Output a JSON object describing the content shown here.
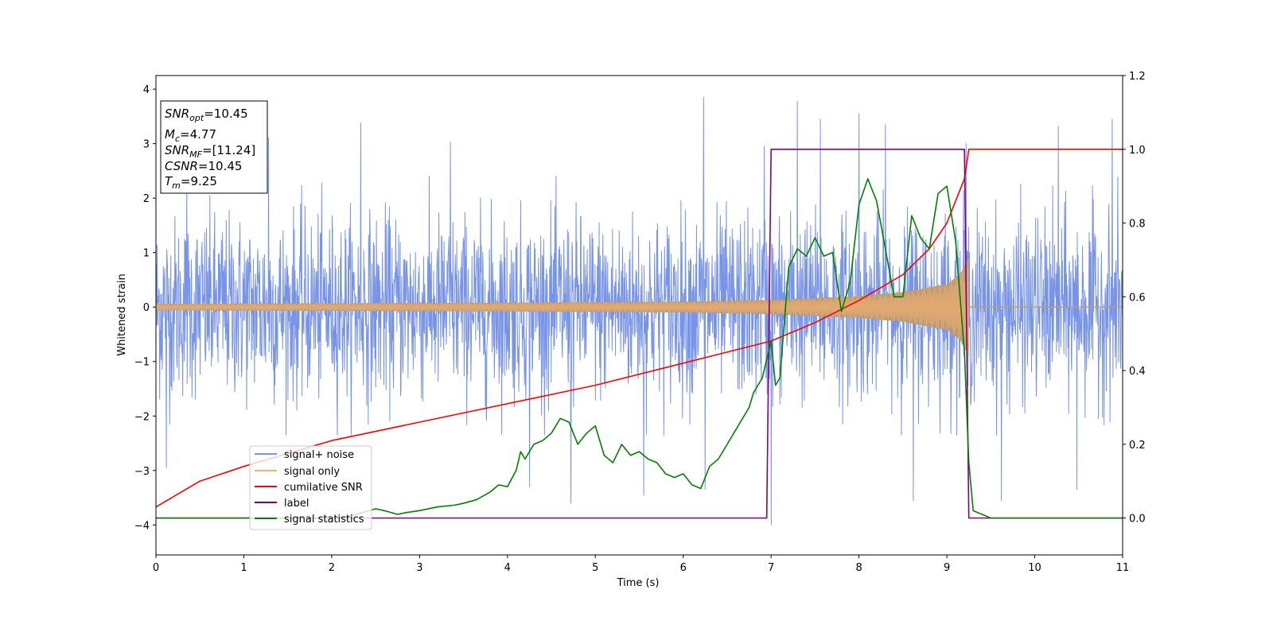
{
  "chart_data": {
    "type": "line",
    "xlabel": "Time (s)",
    "ylabel": "Whitened strain",
    "xlim": [
      0,
      11
    ],
    "ylim": [
      -4.55,
      4.25
    ],
    "y2lim": [
      -0.1,
      1.2
    ],
    "xticks": [
      "0",
      "1",
      "2",
      "3",
      "4",
      "5",
      "6",
      "7",
      "8",
      "9",
      "10",
      "11"
    ],
    "yticks": [
      "−4",
      "−3",
      "−2",
      "−1",
      "0",
      "1",
      "2",
      "3",
      "4"
    ],
    "y2ticks": [
      "0.0",
      "0.2",
      "0.4",
      "0.6",
      "0.8",
      "1.0",
      "1.2"
    ],
    "legend_position": "lower-left",
    "grid": false,
    "info_box": {
      "lines": [
        {
          "sym": "SNR",
          "sub": "opt",
          "val": "=10.45"
        },
        {
          "sym": "M",
          "sub": "c",
          "val": "=4.77"
        },
        {
          "sym": "SNR",
          "sub": "MF",
          "val": "=[11.24]"
        },
        {
          "sym": "CSNR",
          "sub": "",
          "val": "=10.45"
        },
        {
          "sym": "T",
          "sub": "m",
          "val": "=9.25"
        }
      ]
    },
    "series": [
      {
        "name": "signal+ noise",
        "color": "#7894e8",
        "axis": "left",
        "description_values": {
          "typical_range": [
            -2.2,
            2.3
          ],
          "extreme_range": [
            -4.0,
            3.85
          ],
          "duration": [
            0,
            11
          ]
        },
        "peaks": [
          [
            0.12,
            -2.95
          ],
          [
            0.35,
            2.55
          ],
          [
            1.28,
            3.1
          ],
          [
            2.33,
            3.38
          ],
          [
            3.35,
            3.02
          ],
          [
            4.25,
            -3.3
          ],
          [
            4.72,
            -3.6
          ],
          [
            5.55,
            -3.45
          ],
          [
            6.23,
            3.85
          ],
          [
            6.25,
            -3.35
          ],
          [
            6.92,
            2.95
          ],
          [
            7.0,
            -4.0
          ],
          [
            7.3,
            3.78
          ],
          [
            7.56,
            3.45
          ],
          [
            8.0,
            3.55
          ],
          [
            8.3,
            3.35
          ],
          [
            8.62,
            -3.55
          ],
          [
            9.22,
            3.0
          ],
          [
            9.62,
            -3.55
          ],
          [
            10.27,
            3.32
          ],
          [
            10.48,
            -3.35
          ],
          [
            10.88,
            3.45
          ]
        ]
      },
      {
        "name": "signal only",
        "color": "#f4b070",
        "axis": "left",
        "envelope": {
          "x": [
            0,
            2,
            4,
            6,
            7,
            8,
            8.5,
            9,
            9.15,
            9.25
          ],
          "amp": [
            0.06,
            0.07,
            0.08,
            0.1,
            0.13,
            0.2,
            0.27,
            0.42,
            0.6,
            0.9
          ]
        },
        "end_time": 9.25
      },
      {
        "name": "cumilative SNR",
        "color": "#ff0000",
        "axis": "right",
        "x": [
          0,
          0.5,
          1,
          2,
          3,
          4,
          5,
          6,
          6.5,
          7,
          7.5,
          8,
          8.5,
          8.8,
          9,
          9.1,
          9.2,
          9.25,
          11
        ],
        "y": [
          0.03,
          0.1,
          0.14,
          0.21,
          0.26,
          0.31,
          0.36,
          0.42,
          0.45,
          0.48,
          0.53,
          0.59,
          0.66,
          0.73,
          0.8,
          0.86,
          0.92,
          1.0,
          1.0
        ]
      },
      {
        "name": "label",
        "color": "#800080",
        "axis": "right",
        "x": [
          0,
          6.95,
          7.0,
          9.2,
          9.25,
          11
        ],
        "y": [
          0,
          0,
          1,
          1,
          0,
          0
        ]
      },
      {
        "name": "signal statistics",
        "color": "#008000",
        "axis": "right",
        "x": [
          0,
          0.5,
          1,
          1.5,
          2,
          2.2,
          2.35,
          2.5,
          2.6,
          2.75,
          2.85,
          3.0,
          3.2,
          3.4,
          3.5,
          3.65,
          3.8,
          3.9,
          4.0,
          4.1,
          4.15,
          4.2,
          4.3,
          4.4,
          4.5,
          4.6,
          4.7,
          4.8,
          4.9,
          5.0,
          5.1,
          5.2,
          5.3,
          5.4,
          5.5,
          5.6,
          5.7,
          5.8,
          5.9,
          6.0,
          6.1,
          6.2,
          6.3,
          6.4,
          6.5,
          6.6,
          6.7,
          6.75,
          6.8,
          6.85,
          6.9,
          6.95,
          7.0,
          7.05,
          7.1,
          7.2,
          7.3,
          7.4,
          7.5,
          7.6,
          7.7,
          7.8,
          7.9,
          8.0,
          8.1,
          8.2,
          8.3,
          8.4,
          8.5,
          8.6,
          8.7,
          8.8,
          8.9,
          9.0,
          9.1,
          9.2,
          9.25,
          9.3,
          9.5,
          11
        ],
        "y": [
          0.0,
          0.0,
          0.0,
          0.0,
          0.0,
          0.005,
          0.015,
          0.025,
          0.02,
          0.01,
          0.015,
          0.02,
          0.03,
          0.035,
          0.04,
          0.05,
          0.07,
          0.09,
          0.085,
          0.13,
          0.18,
          0.16,
          0.2,
          0.21,
          0.23,
          0.27,
          0.26,
          0.2,
          0.23,
          0.25,
          0.17,
          0.15,
          0.2,
          0.17,
          0.18,
          0.16,
          0.15,
          0.12,
          0.11,
          0.12,
          0.09,
          0.08,
          0.14,
          0.16,
          0.2,
          0.24,
          0.28,
          0.3,
          0.34,
          0.36,
          0.38,
          0.43,
          0.48,
          0.36,
          0.38,
          0.68,
          0.73,
          0.71,
          0.76,
          0.71,
          0.72,
          0.56,
          0.64,
          0.85,
          0.92,
          0.86,
          0.73,
          0.6,
          0.6,
          0.82,
          0.76,
          0.73,
          0.88,
          0.9,
          0.75,
          0.45,
          0.15,
          0.02,
          0.0,
          0.0
        ]
      }
    ]
  }
}
